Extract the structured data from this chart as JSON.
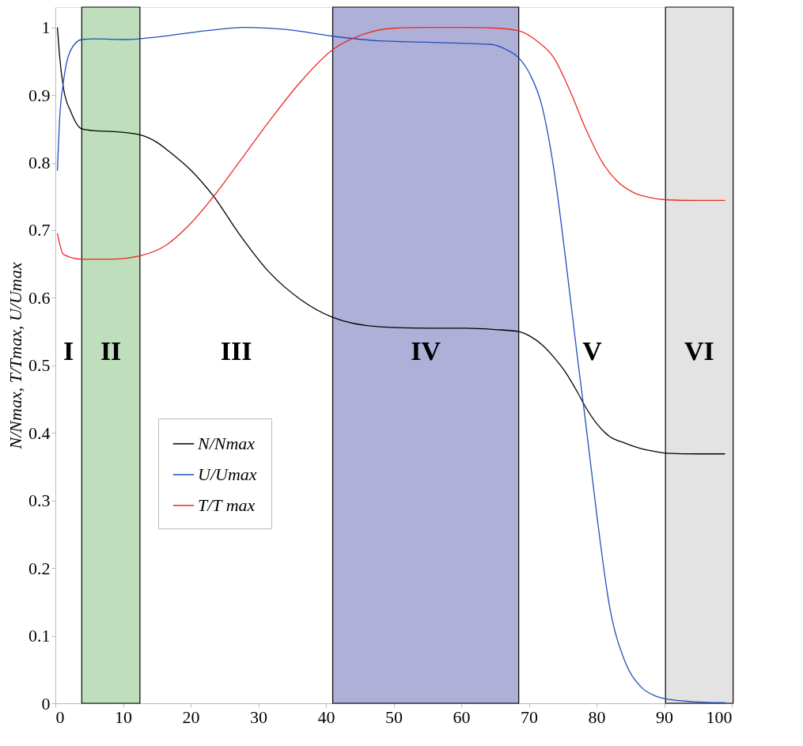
{
  "chart_data": {
    "type": "line",
    "ylabel": "N/Nmax,  T/Tmax,  U/Umax",
    "xlim": [
      0,
      100
    ],
    "ylim": [
      0,
      1.03
    ],
    "xticks": [
      0,
      10,
      20,
      30,
      40,
      50,
      60,
      70,
      80,
      90,
      100
    ],
    "yticks": [
      0,
      0.1,
      0.2,
      0.3,
      0.4,
      0.5,
      0.6,
      0.7,
      0.8,
      0.9,
      1
    ],
    "grid": false,
    "legend": "left",
    "marker": "none",
    "line_style": "solid",
    "series": [
      {
        "name": "N/Nmax",
        "color": "#000000",
        "x": [
          0.3,
          0.6,
          1.2,
          2.3,
          3.9,
          6,
          8.2,
          12.5,
          15,
          17,
          19.9,
          23.4,
          27,
          31.6,
          36.3,
          41,
          48,
          55,
          60.8,
          65,
          68.5,
          70.2,
          72,
          73.7,
          75.4,
          77.2,
          78.4,
          80.1,
          81.9,
          84.2,
          86.5,
          88.9,
          90.2,
          95,
          99
        ],
        "values": [
          1,
          0.96,
          0.91,
          0.875,
          0.85,
          0.847,
          0.846,
          0.841,
          0.83,
          0.815,
          0.79,
          0.75,
          0.697,
          0.638,
          0.597,
          0.571,
          0.557,
          0.555,
          0.555,
          0.553,
          0.55,
          0.543,
          0.53,
          0.512,
          0.49,
          0.46,
          0.438,
          0.413,
          0.395,
          0.385,
          0.377,
          0.372,
          0.37,
          0.369,
          0.369
        ]
      },
      {
        "name": "U/Umax",
        "color": "#1f4fbf",
        "x": [
          0.3,
          0.6,
          1.2,
          2.3,
          3.9,
          5.8,
          10.5,
          15.2,
          22.2,
          28,
          34,
          41,
          48,
          55,
          64.3,
          66.7,
          68.5,
          70.2,
          71.9,
          73.7,
          75.4,
          77.2,
          78.4,
          80.1,
          81.9,
          84.2,
          86.5,
          88.9,
          91.2,
          95,
          99
        ],
        "values": [
          0.788,
          0.86,
          0.92,
          0.967,
          0.982,
          0.983,
          0.982,
          0.986,
          0.995,
          1,
          0.997,
          0.987,
          0.98,
          0.978,
          0.975,
          0.967,
          0.955,
          0.93,
          0.885,
          0.79,
          0.66,
          0.51,
          0.415,
          0.274,
          0.145,
          0.062,
          0.025,
          0.01,
          0.005,
          0.002,
          0.001
        ]
      },
      {
        "name": "T/T max",
        "color": "#ee2a24",
        "x": [
          0.3,
          1.2,
          3.9,
          8.2,
          12.5,
          16.4,
          19.9,
          23.4,
          26.9,
          31.6,
          36.3,
          41,
          45.6,
          50.3,
          55,
          60.8,
          65,
          68.5,
          71.3,
          73.7,
          76,
          78.4,
          80.7,
          83,
          85.4,
          88,
          90.2,
          95,
          99
        ],
        "values": [
          0.695,
          0.664,
          0.657,
          0.657,
          0.662,
          0.678,
          0.709,
          0.75,
          0.797,
          0.861,
          0.92,
          0.967,
          0.99,
          0.999,
          1,
          1,
          0.999,
          0.995,
          0.979,
          0.955,
          0.908,
          0.85,
          0.803,
          0.773,
          0.756,
          0.748,
          0.745,
          0.744,
          0.744
        ]
      }
    ],
    "bands": [
      {
        "axis": "x",
        "from": 3.9,
        "to": 12.5,
        "label": "II",
        "color": "#bfdfbc"
      },
      {
        "axis": "x",
        "from": 41,
        "to": 68.5,
        "label": "IV",
        "color": "#aeb0d8"
      },
      {
        "axis": "x",
        "from": 90.2,
        "to": 100.2,
        "label": "VI",
        "color": "#e3e3e3"
      }
    ],
    "annotations": [
      "I",
      "III",
      "V"
    ]
  }
}
